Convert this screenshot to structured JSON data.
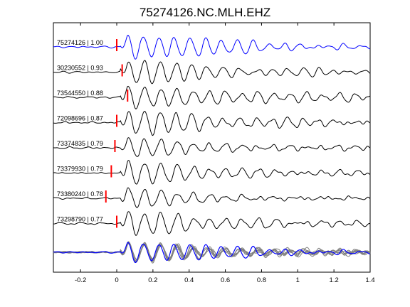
{
  "chart_data": {
    "type": "line",
    "title": "75274126.NC.MLH.EHZ",
    "xlabel": "",
    "ylabel": "",
    "xlim": [
      -0.35,
      1.4
    ],
    "x_ticks": [
      -0.2,
      0,
      0.2,
      0.4,
      0.6,
      0.8,
      1,
      1.2,
      1.4
    ],
    "x_tick_labels": [
      "-0.2",
      "0",
      "0.2",
      "0.4",
      "0.6",
      "0.8",
      "1",
      "1.2",
      "1.4"
    ],
    "grid": false,
    "colors": {
      "reference_trace": "#0000ff",
      "trace": "#000000",
      "stack_trace": "#808080",
      "pick_marker": "#ff0000"
    },
    "traces": [
      {
        "label": "75274126 | 1.00",
        "id": "75274126",
        "correlation": 1.0,
        "pick_time": 0.0,
        "onset": 0.02,
        "period": 0.086,
        "decay": 1.5,
        "color": "#0000ff"
      },
      {
        "label": "30230552 | 0.93",
        "id": "30230552",
        "correlation": 0.93,
        "pick_time": 0.03,
        "onset": 0.02,
        "period": 0.088,
        "decay": 1.8,
        "color": "#000000"
      },
      {
        "label": "73544550 | 0.88",
        "id": "73544550",
        "correlation": 0.88,
        "pick_time": 0.06,
        "onset": 0.02,
        "period": 0.09,
        "decay": 1.4,
        "color": "#000000"
      },
      {
        "label": "72098696 | 0.87",
        "id": "72098696",
        "correlation": 0.87,
        "pick_time": 0.0,
        "onset": 0.02,
        "period": 0.088,
        "decay": 1.6,
        "color": "#000000"
      },
      {
        "label": "73374835 | 0.79",
        "id": "73374835",
        "correlation": 0.79,
        "pick_time": -0.01,
        "onset": 0.02,
        "period": 0.09,
        "decay": 1.9,
        "color": "#000000"
      },
      {
        "label": "73379930 | 0.79",
        "id": "73379930",
        "correlation": 0.79,
        "pick_time": -0.03,
        "onset": 0.02,
        "period": 0.09,
        "decay": 1.9,
        "color": "#000000"
      },
      {
        "label": "73380240 | 0.78",
        "id": "73380240",
        "correlation": 0.78,
        "pick_time": -0.06,
        "onset": 0.02,
        "period": 0.09,
        "decay": 2.0,
        "color": "#000000"
      },
      {
        "label": "73298790 | 0.77",
        "id": "73298790",
        "correlation": 0.77,
        "pick_time": 0.0,
        "onset": 0.02,
        "period": 0.09,
        "decay": 1.8,
        "color": "#000000"
      }
    ]
  }
}
